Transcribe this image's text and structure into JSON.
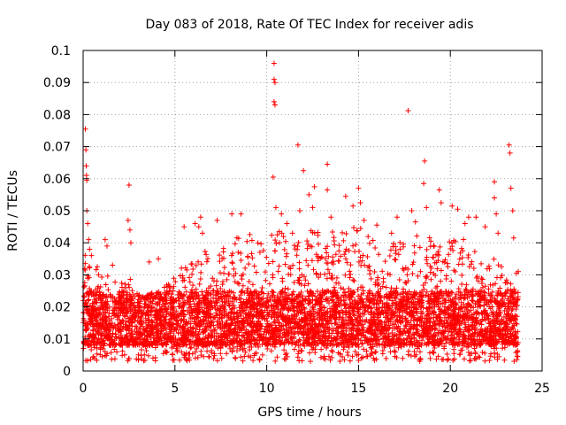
{
  "chart_data": {
    "type": "scatter",
    "title": "Day 083 of 2018, Rate Of TEC Index for receiver adis",
    "xlabel": "GPS time / hours",
    "ylabel": "ROTI / TECUs",
    "xlim": [
      0,
      25
    ],
    "ylim": [
      0,
      0.1
    ],
    "x_ticks": [
      0,
      5,
      10,
      15,
      20,
      25
    ],
    "x_tick_labels": [
      "0",
      "5",
      "10",
      "15",
      "20",
      "25"
    ],
    "y_ticks": [
      0,
      0.01,
      0.02,
      0.03,
      0.04,
      0.05,
      0.06,
      0.07,
      0.08,
      0.09,
      0.1
    ],
    "y_tick_labels": [
      "0",
      "0.01",
      "0.02",
      "0.03",
      "0.04",
      "0.05",
      "0.06",
      "0.07",
      "0.08",
      "0.09",
      "0.1"
    ],
    "grid": true,
    "marker": "+",
    "color": "#ff0000",
    "series": [
      {
        "name": "ROTI",
        "points": [
          [
            0.12,
            0.0755
          ],
          [
            0.15,
            0.069
          ],
          [
            0.17,
            0.064
          ],
          [
            0.18,
            0.061
          ],
          [
            0.2,
            0.0595
          ],
          [
            0.2,
            0.05
          ],
          [
            0.25,
            0.046
          ],
          [
            0.3,
            0.041
          ],
          [
            0.35,
            0.038
          ],
          [
            0.45,
            0.036
          ],
          [
            1.2,
            0.041
          ],
          [
            1.3,
            0.039
          ],
          [
            1.6,
            0.033
          ],
          [
            2.5,
            0.058
          ],
          [
            2.45,
            0.047
          ],
          [
            2.55,
            0.044
          ],
          [
            2.6,
            0.04
          ],
          [
            3.6,
            0.034
          ],
          [
            4.1,
            0.035
          ],
          [
            5.5,
            0.045
          ],
          [
            6.1,
            0.046
          ],
          [
            6.3,
            0.045
          ],
          [
            6.4,
            0.048
          ],
          [
            6.5,
            0.043
          ],
          [
            7.3,
            0.047
          ],
          [
            8.1,
            0.049
          ],
          [
            8.6,
            0.049
          ],
          [
            10.4,
            0.096
          ],
          [
            10.4,
            0.091
          ],
          [
            10.45,
            0.09
          ],
          [
            10.4,
            0.084
          ],
          [
            10.45,
            0.083
          ],
          [
            10.35,
            0.0605
          ],
          [
            10.5,
            0.051
          ],
          [
            10.8,
            0.049
          ],
          [
            11.1,
            0.046
          ],
          [
            11.4,
            0.043
          ],
          [
            11.7,
            0.0705
          ],
          [
            11.8,
            0.05
          ],
          [
            12.0,
            0.0625
          ],
          [
            12.3,
            0.055
          ],
          [
            12.6,
            0.0575
          ],
          [
            12.5,
            0.051
          ],
          [
            13.3,
            0.0645
          ],
          [
            13.3,
            0.0565
          ],
          [
            13.5,
            0.048
          ],
          [
            14.3,
            0.0545
          ],
          [
            14.7,
            0.0515
          ],
          [
            15.0,
            0.057
          ],
          [
            15.1,
            0.0525
          ],
          [
            15.3,
            0.047
          ],
          [
            16.0,
            0.0455
          ],
          [
            16.8,
            0.043
          ],
          [
            17.1,
            0.048
          ],
          [
            17.7,
            0.0812
          ],
          [
            17.9,
            0.05
          ],
          [
            18.1,
            0.0465
          ],
          [
            18.6,
            0.0655
          ],
          [
            18.55,
            0.0585
          ],
          [
            18.7,
            0.051
          ],
          [
            19.4,
            0.0565
          ],
          [
            19.5,
            0.0525
          ],
          [
            20.1,
            0.0515
          ],
          [
            20.4,
            0.0505
          ],
          [
            20.8,
            0.046
          ],
          [
            21.0,
            0.048
          ],
          [
            21.4,
            0.048
          ],
          [
            21.9,
            0.045
          ],
          [
            22.4,
            0.059
          ],
          [
            22.4,
            0.054
          ],
          [
            22.5,
            0.049
          ],
          [
            22.6,
            0.043
          ],
          [
            23.2,
            0.0705
          ],
          [
            23.25,
            0.068
          ],
          [
            23.3,
            0.057
          ],
          [
            23.4,
            0.05
          ],
          [
            23.45,
            0.0415
          ],
          [
            23.6,
            0.0305
          ],
          [
            23.7,
            0.031
          ]
        ],
        "dense_band": {
          "x_range": [
            0,
            23.7
          ],
          "baseline_min": 0.003,
          "baseline_typical": [
            0.008,
            0.025
          ],
          "envelope": [
            [
              0.0,
              0.038
            ],
            [
              0.5,
              0.036
            ],
            [
              1.0,
              0.031
            ],
            [
              1.5,
              0.029
            ],
            [
              2.0,
              0.027
            ],
            [
              2.5,
              0.03
            ],
            [
              3.0,
              0.024
            ],
            [
              3.5,
              0.024
            ],
            [
              4.0,
              0.025
            ],
            [
              4.5,
              0.027
            ],
            [
              5.0,
              0.03
            ],
            [
              5.5,
              0.033
            ],
            [
              6.0,
              0.036
            ],
            [
              6.5,
              0.04
            ],
            [
              7.0,
              0.035
            ],
            [
              7.5,
              0.038
            ],
            [
              8.0,
              0.041
            ],
            [
              8.5,
              0.043
            ],
            [
              9.0,
              0.045
            ],
            [
              9.5,
              0.041
            ],
            [
              10.0,
              0.04
            ],
            [
              10.5,
              0.045
            ],
            [
              11.0,
              0.042
            ],
            [
              11.5,
              0.04
            ],
            [
              12.0,
              0.043
            ],
            [
              12.5,
              0.045
            ],
            [
              13.0,
              0.042
            ],
            [
              13.5,
              0.044
            ],
            [
              14.0,
              0.043
            ],
            [
              14.5,
              0.045
            ],
            [
              15.0,
              0.046
            ],
            [
              15.5,
              0.043
            ],
            [
              16.0,
              0.04
            ],
            [
              16.5,
              0.038
            ],
            [
              17.0,
              0.041
            ],
            [
              17.5,
              0.04
            ],
            [
              18.0,
              0.042
            ],
            [
              18.5,
              0.044
            ],
            [
              19.0,
              0.041
            ],
            [
              19.5,
              0.04
            ],
            [
              20.0,
              0.042
            ],
            [
              20.5,
              0.043
            ],
            [
              21.0,
              0.04
            ],
            [
              21.5,
              0.037
            ],
            [
              22.0,
              0.034
            ],
            [
              22.5,
              0.036
            ],
            [
              23.0,
              0.031
            ],
            [
              23.5,
              0.03
            ],
            [
              23.7,
              0.026
            ]
          ]
        }
      }
    ]
  }
}
